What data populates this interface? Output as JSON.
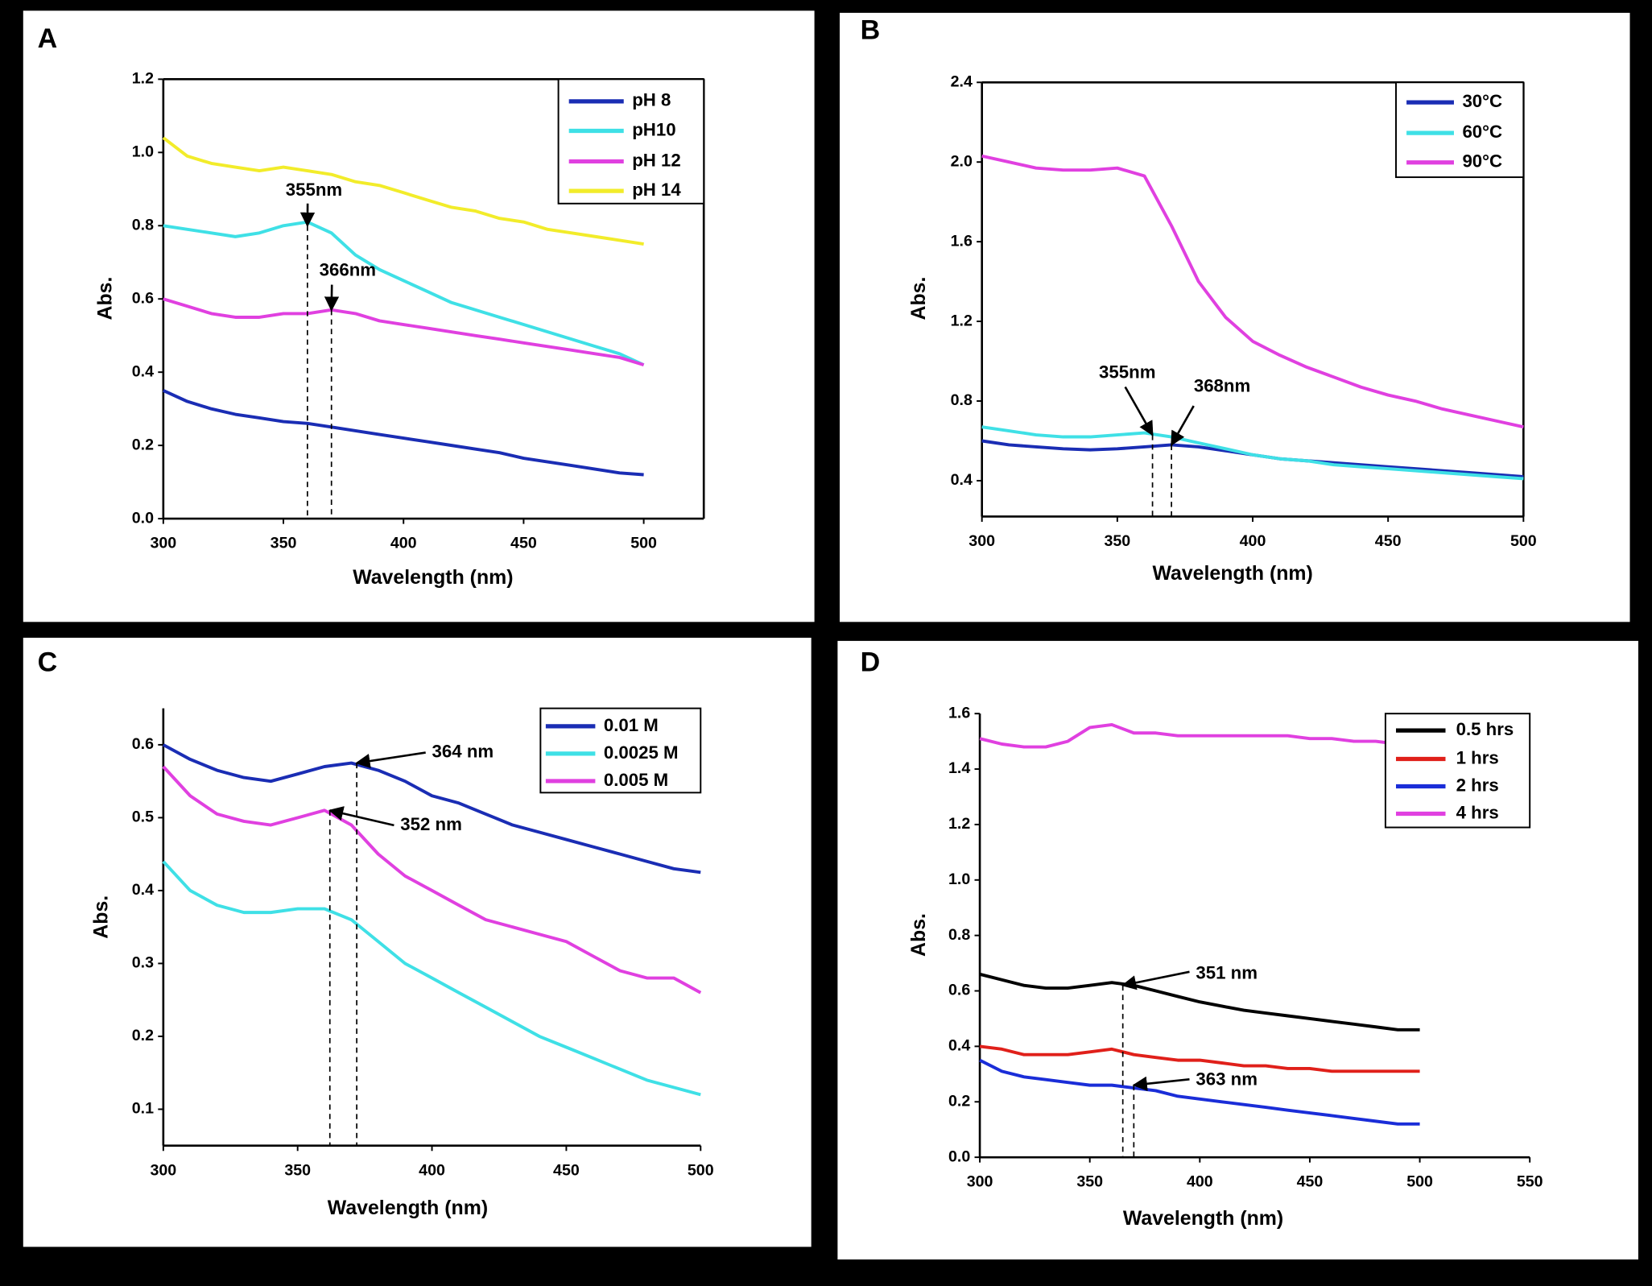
{
  "chart_data": [
    {
      "type": "line",
      "panel": "A",
      "x_label": "Wavelength (nm)",
      "y_label": "Abs.",
      "box": true,
      "legend": "upper right",
      "x": [
        300,
        310,
        320,
        330,
        340,
        350,
        360,
        370,
        380,
        390,
        400,
        410,
        420,
        430,
        440,
        450,
        460,
        470,
        480,
        490,
        500
      ],
      "xlim": [
        300,
        525
      ],
      "xticks": [
        300,
        350,
        400,
        450,
        500
      ],
      "ylim": [
        0,
        1.2
      ],
      "yticks": [
        {
          "value": 0,
          "label": "0.0"
        },
        0.2,
        0.4,
        0.6,
        0.8,
        {
          "value": 1,
          "label": "1.0"
        },
        1.2
      ],
      "series": [
        {
          "name": "pH 8",
          "color": "#1a2db4",
          "values": [
            0.35,
            0.32,
            0.3,
            0.285,
            0.275,
            0.265,
            0.26,
            0.25,
            0.24,
            0.23,
            0.22,
            0.21,
            0.2,
            0.19,
            0.18,
            0.165,
            0.155,
            0.145,
            0.135,
            0.125,
            0.12
          ]
        },
        {
          "name": "pH10",
          "color": "#3fe0e6",
          "values": [
            0.8,
            0.79,
            0.78,
            0.77,
            0.78,
            0.8,
            0.81,
            0.78,
            0.72,
            0.68,
            0.65,
            0.62,
            0.59,
            0.57,
            0.55,
            0.53,
            0.51,
            0.49,
            0.47,
            0.45,
            0.42
          ]
        },
        {
          "name": "pH 12",
          "color": "#e040e0",
          "values": [
            0.6,
            0.58,
            0.56,
            0.55,
            0.55,
            0.56,
            0.56,
            0.57,
            0.56,
            0.54,
            0.53,
            0.52,
            0.51,
            0.5,
            0.49,
            0.48,
            0.47,
            0.46,
            0.45,
            0.44,
            0.42
          ]
        },
        {
          "name": "pH 14",
          "color": "#f2ec2a",
          "values": [
            1.04,
            0.99,
            0.97,
            0.96,
            0.95,
            0.96,
            0.95,
            0.94,
            0.92,
            0.91,
            0.89,
            0.87,
            0.85,
            0.84,
            0.82,
            0.81,
            0.79,
            0.78,
            0.77,
            0.76,
            0.75
          ]
        }
      ],
      "annotations": [
        {
          "text": "355nm",
          "x": 360,
          "y": 0.8
        },
        {
          "text": "366nm",
          "x": 370,
          "y": 0.57
        }
      ]
    },
    {
      "type": "line",
      "panel": "B",
      "x_label": "Wavelength (nm)",
      "y_label": "Abs.",
      "box": true,
      "legend": "upper right",
      "x": [
        300,
        310,
        320,
        330,
        340,
        350,
        360,
        370,
        380,
        390,
        400,
        410,
        420,
        430,
        440,
        450,
        460,
        470,
        480,
        490,
        500
      ],
      "xlim": [
        300,
        500
      ],
      "xticks": [
        300,
        350,
        400,
        450,
        500
      ],
      "ylim": [
        0.22,
        2.4
      ],
      "yticks": [
        0.4,
        0.8,
        1.2,
        1.6,
        {
          "value": 2,
          "label": "2.0"
        },
        2.4
      ],
      "series": [
        {
          "name": "30°C",
          "color": "#1a2db4",
          "values": [
            0.6,
            0.58,
            0.57,
            0.56,
            0.555,
            0.56,
            0.57,
            0.58,
            0.57,
            0.55,
            0.53,
            0.51,
            0.5,
            0.49,
            0.48,
            0.47,
            0.46,
            0.45,
            0.44,
            0.43,
            0.42
          ]
        },
        {
          "name": "60°C",
          "color": "#3fe0e6",
          "values": [
            0.67,
            0.65,
            0.63,
            0.62,
            0.62,
            0.63,
            0.64,
            0.62,
            0.59,
            0.56,
            0.53,
            0.51,
            0.5,
            0.48,
            0.47,
            0.46,
            0.45,
            0.44,
            0.43,
            0.42,
            0.41
          ]
        },
        {
          "name": "90°C",
          "color": "#e040e0",
          "values": [
            2.03,
            2,
            1.97,
            1.96,
            1.96,
            1.97,
            1.93,
            1.68,
            1.4,
            1.22,
            1.1,
            1.03,
            0.97,
            0.92,
            0.87,
            0.83,
            0.8,
            0.76,
            0.73,
            0.7,
            0.67
          ]
        }
      ],
      "annotations": [
        {
          "text": "355nm",
          "x": 363,
          "y": 0.63
        },
        {
          "text": "368nm",
          "x": 370,
          "y": 0.58
        }
      ]
    },
    {
      "type": "line",
      "panel": "C",
      "x_label": "Wavelength (nm)",
      "y_label": "Abs.",
      "box": false,
      "legend": "upper right",
      "x": [
        300,
        310,
        320,
        330,
        340,
        350,
        360,
        370,
        380,
        390,
        400,
        410,
        420,
        430,
        440,
        450,
        460,
        470,
        480,
        490,
        500
      ],
      "xlim": [
        300,
        500
      ],
      "xticks": [
        300,
        350,
        400,
        450,
        500
      ],
      "ylim": [
        0.05,
        0.65
      ],
      "yticks": [
        0.1,
        0.2,
        0.3,
        0.4,
        0.5,
        0.6
      ],
      "series": [
        {
          "name": "0.01 M",
          "color": "#1a2db4",
          "values": [
            0.6,
            0.58,
            0.565,
            0.555,
            0.55,
            0.56,
            0.57,
            0.575,
            0.565,
            0.55,
            0.53,
            0.52,
            0.505,
            0.49,
            0.48,
            0.47,
            0.46,
            0.45,
            0.44,
            0.43,
            0.425
          ]
        },
        {
          "name": "0.0025 M",
          "color": "#3fe0e6",
          "values": [
            0.44,
            0.4,
            0.38,
            0.37,
            0.37,
            0.375,
            0.375,
            0.36,
            0.33,
            0.3,
            0.28,
            0.26,
            0.24,
            0.22,
            0.2,
            0.185,
            0.17,
            0.155,
            0.14,
            0.13,
            0.12
          ]
        },
        {
          "name": "0.005 M",
          "color": "#e040e0",
          "values": [
            0.57,
            0.53,
            0.505,
            0.495,
            0.49,
            0.5,
            0.51,
            0.49,
            0.45,
            0.42,
            0.4,
            0.38,
            0.36,
            0.35,
            0.34,
            0.33,
            0.31,
            0.29,
            0.28,
            0.28,
            0.26
          ]
        }
      ],
      "annotations": [
        {
          "text": "364 nm",
          "x": 372,
          "y": 0.575
        },
        {
          "text": "352 nm",
          "x": 362,
          "y": 0.51
        }
      ]
    },
    {
      "type": "line",
      "panel": "D",
      "x_label": "Wavelength (nm)",
      "y_label": "Abs.",
      "box": false,
      "legend": "upper right",
      "x": [
        300,
        310,
        320,
        330,
        340,
        350,
        360,
        370,
        380,
        390,
        400,
        410,
        420,
        430,
        440,
        450,
        460,
        470,
        480,
        490,
        500
      ],
      "xlim": [
        300,
        550
      ],
      "xticks": [
        300,
        350,
        400,
        450,
        500,
        550
      ],
      "ylim": [
        0,
        1.6
      ],
      "yticks": [
        {
          "value": 0,
          "label": "0.0"
        },
        0.2,
        0.4,
        0.6,
        0.8,
        {
          "value": 1,
          "label": "1.0"
        },
        1.2,
        1.4,
        1.6
      ],
      "series": [
        {
          "name": "0.5 hrs",
          "color": "#000000",
          "values": [
            0.66,
            0.64,
            0.62,
            0.61,
            0.61,
            0.62,
            0.63,
            0.62,
            0.6,
            0.58,
            0.56,
            0.545,
            0.53,
            0.52,
            0.51,
            0.5,
            0.49,
            0.48,
            0.47,
            0.46,
            0.46
          ]
        },
        {
          "name": "1 hrs",
          "color": "#e0201a",
          "values": [
            0.4,
            0.39,
            0.37,
            0.37,
            0.37,
            0.38,
            0.39,
            0.37,
            0.36,
            0.35,
            0.35,
            0.34,
            0.33,
            0.33,
            0.32,
            0.32,
            0.31,
            0.31,
            0.31,
            0.31,
            0.31
          ]
        },
        {
          "name": "2 hrs",
          "color": "#1a2dd8",
          "values": [
            0.35,
            0.31,
            0.29,
            0.28,
            0.27,
            0.26,
            0.26,
            0.25,
            0.24,
            0.22,
            0.21,
            0.2,
            0.19,
            0.18,
            0.17,
            0.16,
            0.15,
            0.14,
            0.13,
            0.12,
            0.12
          ]
        },
        {
          "name": "4 hrs",
          "color": "#e040e0",
          "values": [
            1.51,
            1.49,
            1.48,
            1.48,
            1.5,
            1.55,
            1.56,
            1.53,
            1.53,
            1.52,
            1.52,
            1.52,
            1.52,
            1.52,
            1.52,
            1.51,
            1.51,
            1.5,
            1.5,
            1.49,
            1.49
          ]
        }
      ],
      "annotations": [
        {
          "text": "351 nm",
          "x": 365,
          "y": 0.62
        },
        {
          "text": "363 nm",
          "x": 370,
          "y": 0.26
        }
      ]
    }
  ]
}
